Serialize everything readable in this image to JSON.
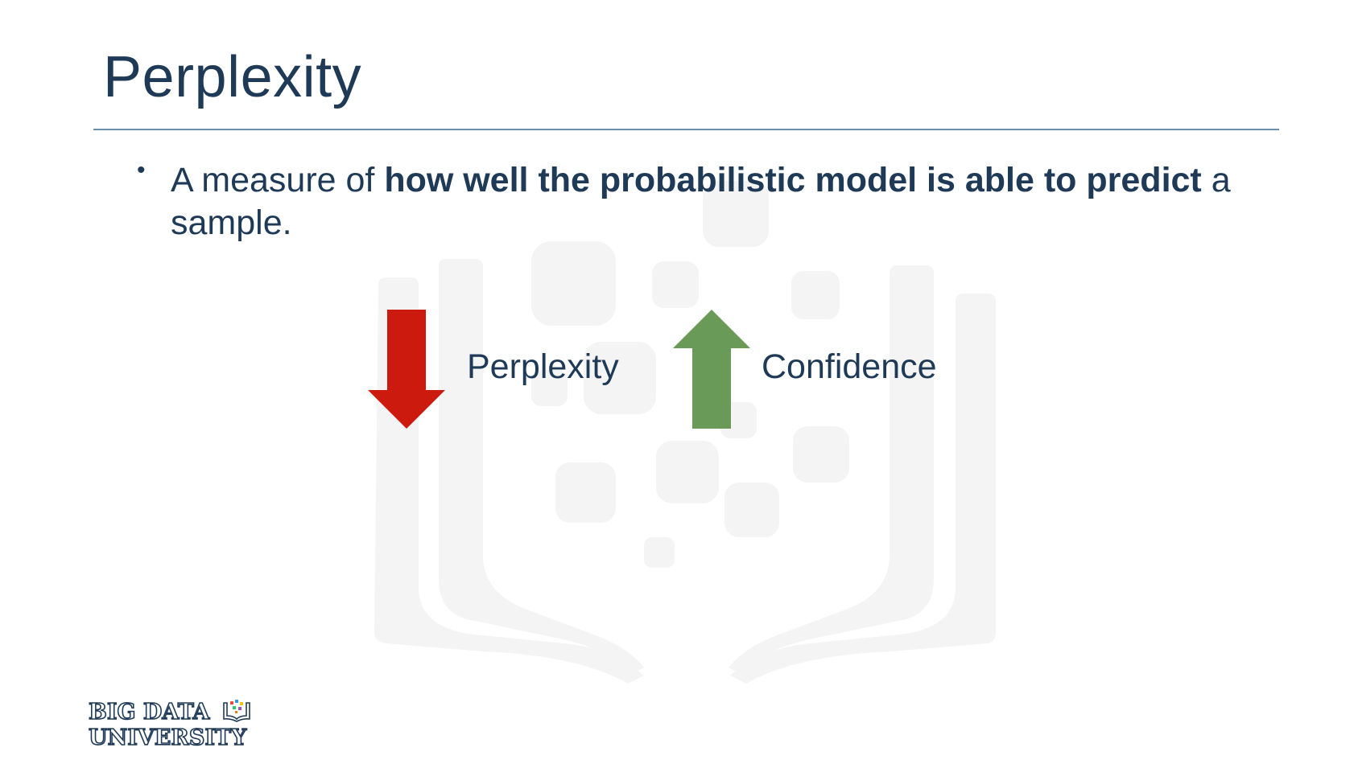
{
  "slide": {
    "title": "Perplexity",
    "bullet": {
      "marker": "•",
      "before": "A measure of ",
      "bold": "how well the probabilistic model is able to predict",
      "after": " a sample."
    },
    "indicators": [
      {
        "label": "Perplexity",
        "direction": "down",
        "color": "#cc1a0e",
        "icon": "down-arrow-icon"
      },
      {
        "label": "Confidence",
        "direction": "up",
        "color": "#6a9a57",
        "icon": "up-arrow-icon"
      }
    ]
  },
  "logo": {
    "line1": "BIG DATA",
    "line2": "UNIVERSITY",
    "icon": "book-icon"
  }
}
